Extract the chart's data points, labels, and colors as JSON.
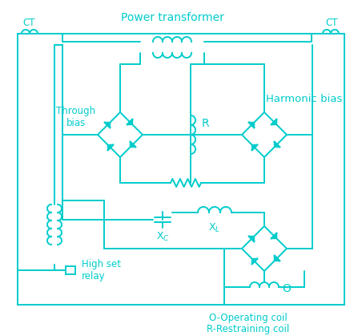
{
  "color": "#00CCCC",
  "bg_color": "#ffffff",
  "figsize": [
    4.47,
    4.19
  ],
  "dpi": 100,
  "lw": 1.4,
  "texts": {
    "power_transformer": "Power transformer",
    "harmonic_bias": "Harmonic bias",
    "through_bias": "Through\nbias",
    "CT_left": "CT",
    "CT_right": "CT",
    "high_set": "High set\nrelay",
    "footnote1": "O-Operating coil",
    "footnote2": "R-Restraining coil"
  }
}
